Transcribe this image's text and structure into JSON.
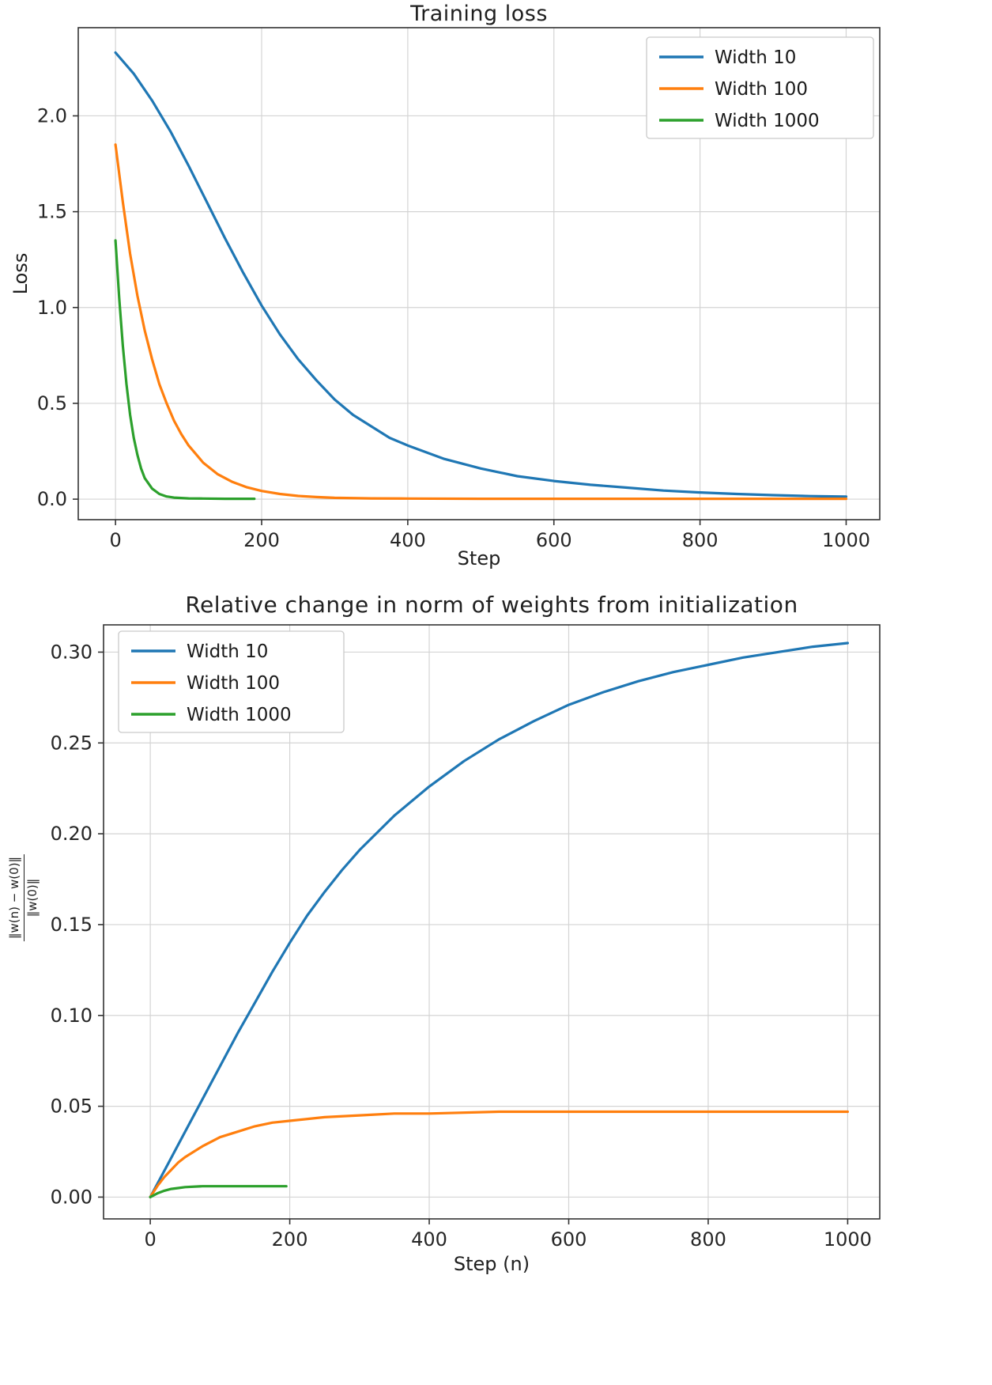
{
  "page": {
    "background": "#ffffff",
    "text_color": "#1f1f1f"
  },
  "chart_data": [
    {
      "id": "training-loss",
      "type": "line",
      "title": "Training loss",
      "xlabel": "Step",
      "ylabel": "Loss",
      "xlim": [
        -51,
        1046
      ],
      "ylim": [
        -0.107,
        2.46
      ],
      "xticks": [
        0,
        200,
        400,
        600,
        800,
        1000
      ],
      "xtick_labels": [
        "0",
        "200",
        "400",
        "600",
        "800",
        "1000"
      ],
      "yticks": [
        0.0,
        0.5,
        1.0,
        1.5,
        2.0
      ],
      "ytick_labels": [
        "0.0",
        "0.5",
        "1.0",
        "1.5",
        "2.0"
      ],
      "grid": true,
      "grid_color": "#d4d4d4",
      "legend_position": "upper right",
      "legend_entries": [
        "Width 10",
        "Width 100",
        "Width 1000"
      ],
      "series": [
        {
          "name": "Width 10",
          "color": "#1f77b4",
          "x": [
            0,
            25,
            50,
            75,
            100,
            125,
            150,
            175,
            200,
            225,
            250,
            275,
            300,
            325,
            350,
            375,
            400,
            450,
            500,
            550,
            600,
            650,
            700,
            750,
            800,
            850,
            900,
            950,
            1000
          ],
          "y": [
            2.33,
            2.22,
            2.08,
            1.92,
            1.74,
            1.55,
            1.36,
            1.18,
            1.01,
            0.86,
            0.73,
            0.62,
            0.52,
            0.44,
            0.38,
            0.32,
            0.28,
            0.21,
            0.16,
            0.12,
            0.095,
            0.075,
            0.06,
            0.045,
            0.035,
            0.027,
            0.021,
            0.016,
            0.013
          ]
        },
        {
          "name": "Width 100",
          "color": "#ff7f0e",
          "x": [
            0,
            10,
            20,
            30,
            40,
            50,
            60,
            70,
            80,
            90,
            100,
            120,
            140,
            160,
            180,
            200,
            225,
            250,
            275,
            300,
            350,
            400,
            500,
            600,
            700,
            800,
            900,
            1000
          ],
          "y": [
            1.85,
            1.55,
            1.28,
            1.06,
            0.88,
            0.73,
            0.6,
            0.5,
            0.41,
            0.34,
            0.28,
            0.19,
            0.13,
            0.09,
            0.062,
            0.043,
            0.027,
            0.017,
            0.011,
            0.007,
            0.004,
            0.003,
            0.002,
            0.002,
            0.002,
            0.002,
            0.002,
            0.002
          ]
        },
        {
          "name": "Width 1000",
          "color": "#2ca02c",
          "x": [
            0,
            5,
            10,
            15,
            20,
            25,
            30,
            35,
            40,
            50,
            60,
            70,
            80,
            100,
            120,
            150,
            190
          ],
          "y": [
            1.35,
            1.05,
            0.8,
            0.6,
            0.44,
            0.32,
            0.23,
            0.16,
            0.11,
            0.055,
            0.027,
            0.014,
            0.008,
            0.004,
            0.003,
            0.002,
            0.002
          ]
        }
      ]
    },
    {
      "id": "relative-weight-change",
      "type": "line",
      "title": "Relative change in norm of weights from initialization",
      "xlabel": "Step (n)",
      "ylabel_fraction": {
        "numerator": "‖w(n) − w(0)‖",
        "denominator": "‖w(0)‖"
      },
      "xlim": [
        -67,
        1046
      ],
      "ylim": [
        -0.012,
        0.315
      ],
      "xticks": [
        0,
        200,
        400,
        600,
        800,
        1000
      ],
      "xtick_labels": [
        "0",
        "200",
        "400",
        "600",
        "800",
        "1000"
      ],
      "yticks": [
        0.0,
        0.05,
        0.1,
        0.15,
        0.2,
        0.25,
        0.3
      ],
      "ytick_labels": [
        "0.00",
        "0.05",
        "0.10",
        "0.15",
        "0.20",
        "0.25",
        "0.30"
      ],
      "grid": true,
      "grid_color": "#d4d4d4",
      "legend_position": "upper left",
      "legend_entries": [
        "Width 10",
        "Width 100",
        "Width 1000"
      ],
      "series": [
        {
          "name": "Width 10",
          "color": "#1f77b4",
          "x": [
            0,
            25,
            50,
            75,
            100,
            125,
            150,
            175,
            200,
            225,
            250,
            275,
            300,
            350,
            400,
            450,
            500,
            550,
            600,
            650,
            700,
            750,
            800,
            850,
            900,
            950,
            1000
          ],
          "y": [
            0.0,
            0.018,
            0.036,
            0.054,
            0.072,
            0.09,
            0.107,
            0.124,
            0.14,
            0.155,
            0.168,
            0.18,
            0.191,
            0.21,
            0.226,
            0.24,
            0.252,
            0.262,
            0.271,
            0.278,
            0.284,
            0.289,
            0.293,
            0.297,
            0.3,
            0.303,
            0.305
          ]
        },
        {
          "name": "Width 100",
          "color": "#ff7f0e",
          "x": [
            0,
            10,
            20,
            30,
            40,
            50,
            75,
            100,
            125,
            150,
            175,
            200,
            250,
            300,
            350,
            400,
            500,
            600,
            700,
            800,
            900,
            1000
          ],
          "y": [
            0.0,
            0.006,
            0.011,
            0.015,
            0.019,
            0.022,
            0.028,
            0.033,
            0.036,
            0.039,
            0.041,
            0.042,
            0.044,
            0.045,
            0.046,
            0.046,
            0.047,
            0.047,
            0.047,
            0.047,
            0.047,
            0.047
          ]
        },
        {
          "name": "Width 1000",
          "color": "#2ca02c",
          "x": [
            0,
            10,
            20,
            30,
            40,
            50,
            75,
            100,
            150,
            195
          ],
          "y": [
            0.0,
            0.002,
            0.0035,
            0.0045,
            0.005,
            0.0055,
            0.006,
            0.006,
            0.006,
            0.006
          ]
        }
      ]
    }
  ]
}
